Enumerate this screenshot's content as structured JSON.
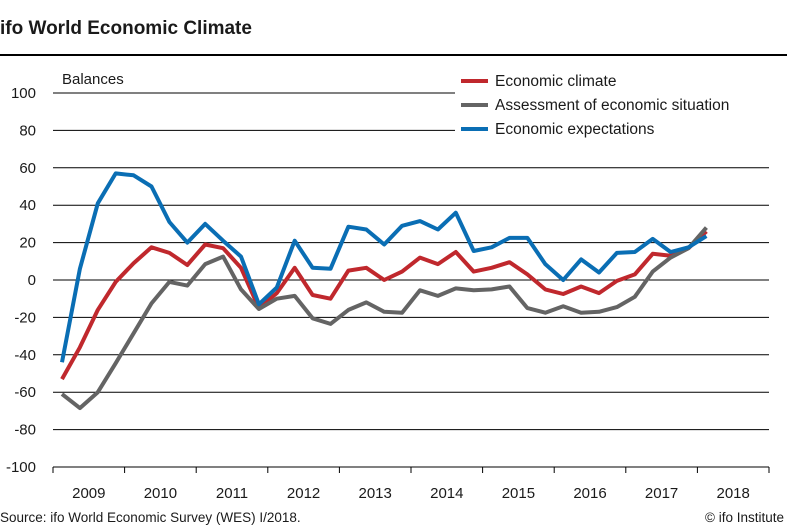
{
  "title": "ifo World Economic Climate",
  "source": "Source: ifo World Economic Survey (WES) I/2018.",
  "copyright": "© ifo Institute",
  "chart_data": {
    "type": "line",
    "title": "ifo World Economic Climate",
    "ylabel": "Balances",
    "xlabel": "",
    "ylim": [
      -100,
      100
    ],
    "yticks": [
      100,
      80,
      60,
      40,
      20,
      0,
      -20,
      -40,
      -60,
      -80,
      -100
    ],
    "xticks": [
      "2009",
      "2010",
      "2011",
      "2012",
      "2013",
      "2014",
      "2015",
      "2016",
      "2017",
      "2018"
    ],
    "x_period": "quarterly, Q1 2009 to Q1 2018",
    "grid": true,
    "legend_position": "top-right",
    "series": [
      {
        "name": "Economic climate",
        "color": "#C0282D",
        "values": [
          -53,
          -36,
          -16,
          -1,
          9,
          17.5,
          14.5,
          8,
          19,
          17,
          6.5,
          -15,
          -7,
          6.5,
          -8,
          -10,
          5,
          6.5,
          0,
          4.5,
          12,
          8.5,
          15,
          4.5,
          6.5,
          9.5,
          3,
          -5,
          -7.5,
          -3.5,
          -7,
          -0.5,
          3,
          14,
          13,
          17,
          26
        ]
      },
      {
        "name": "Assessment of economic situation",
        "color": "#646464",
        "values": [
          -61,
          -68.5,
          -60,
          -44.5,
          -28.5,
          -12.5,
          -1,
          -3,
          8.5,
          12.5,
          -5,
          -15.5,
          -10,
          -8.5,
          -20.5,
          -23.5,
          -16,
          -12,
          -17,
          -17.5,
          -5.5,
          -8.5,
          -4.5,
          -5.5,
          -5,
          -3.5,
          -15,
          -17.5,
          -14,
          -17.5,
          -17,
          -14.5,
          -9,
          4.5,
          12,
          17,
          28
        ]
      },
      {
        "name": "Economic expectations",
        "color": "#0A6EB4",
        "values": [
          -44,
          6,
          41,
          57,
          56,
          50,
          31,
          20,
          30,
          21,
          12.5,
          -13,
          -4,
          21,
          6.5,
          6,
          28.5,
          27,
          19,
          29,
          31.5,
          27,
          36,
          15.5,
          17.5,
          22.5,
          22.5,
          8.5,
          0,
          11,
          4,
          14.5,
          15,
          22,
          15,
          17.5,
          23.5
        ]
      }
    ]
  }
}
